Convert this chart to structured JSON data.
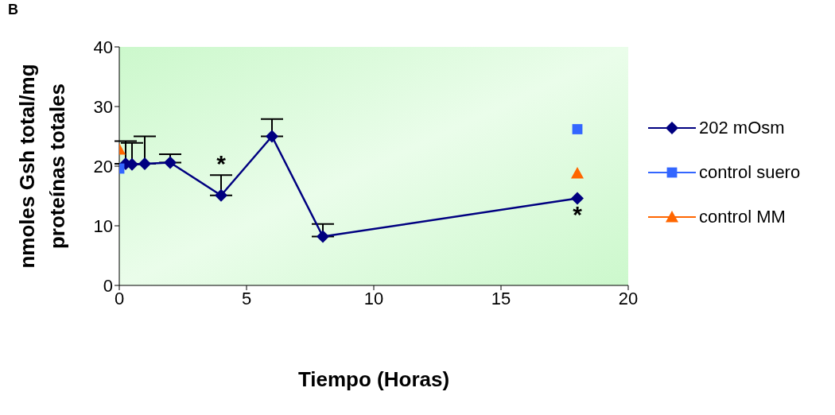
{
  "chart_data": {
    "type": "line",
    "xlabel": "Tiempo (Horas)",
    "ylabel": "nmoles Gsh total/mg proteínas totales",
    "xlim": [
      0,
      20
    ],
    "xticks": [
      0,
      5,
      10,
      15,
      20
    ],
    "ylim": [
      0,
      40
    ],
    "yticks": [
      0,
      10,
      20,
      30,
      40
    ],
    "grid": false,
    "legend": "right",
    "series": [
      {
        "name": "202 mOsm",
        "color": "#000080",
        "marker": "diamond",
        "x": [
          0.25,
          0.5,
          1,
          2,
          4,
          6,
          8,
          18
        ],
        "values": [
          20.4,
          20.3,
          20.4,
          20.6,
          15.1,
          25.0,
          8.2,
          14.6
        ],
        "errors": [
          [
            20.4,
            24.2
          ],
          [
            20.3,
            23.9
          ],
          [
            20.4,
            25.0
          ],
          [
            20.6,
            22.0
          ],
          [
            15.1,
            18.5
          ],
          [
            25.0,
            27.9
          ],
          [
            8.2,
            10.3
          ],
          null
        ]
      },
      {
        "name": "control suero",
        "color": "#3366ff",
        "marker": "square",
        "type": "scatter",
        "x": [
          0,
          18
        ],
        "values": [
          19.6,
          26.2
        ]
      },
      {
        "name": "control MM",
        "color": "#ff6600",
        "marker": "triangle",
        "type": "scatter",
        "x": [
          0,
          18
        ],
        "values": [
          22.8,
          18.8
        ]
      }
    ],
    "annotations": [
      "B",
      {
        "text": "*",
        "x": 4,
        "y": 15.1
      },
      {
        "text": "*",
        "x": 18,
        "y": 14.6
      }
    ]
  }
}
